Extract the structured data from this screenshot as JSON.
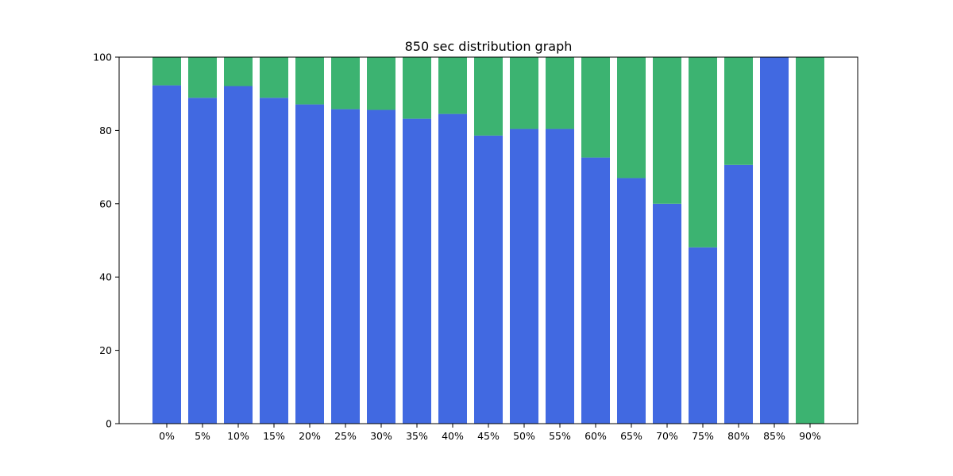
{
  "chart_data": {
    "type": "bar",
    "stacked": true,
    "title": "850 sec distribution graph",
    "xlabel": "",
    "ylabel": "",
    "ylim": [
      0,
      100
    ],
    "yticks": [
      0,
      20,
      40,
      60,
      80,
      100
    ],
    "grid": false,
    "categories": [
      "0%",
      "5%",
      "10%",
      "15%",
      "20%",
      "25%",
      "30%",
      "35%",
      "40%",
      "45%",
      "50%",
      "55%",
      "60%",
      "65%",
      "70%",
      "75%",
      "80%",
      "85%",
      "90%"
    ],
    "series": [
      {
        "color": "#4169e1",
        "values": [
          92.3,
          88.9,
          92.1,
          88.9,
          87.1,
          85.8,
          85.6,
          83.2,
          84.5,
          78.6,
          80.4,
          80.4,
          72.6,
          67.0,
          60.0,
          48.1,
          70.6,
          100.0,
          0.0
        ]
      },
      {
        "color": "#3cb371",
        "values": [
          7.7,
          11.1,
          7.9,
          11.1,
          12.9,
          14.2,
          14.4,
          16.8,
          15.5,
          21.4,
          19.6,
          19.6,
          27.4,
          33.0,
          40.0,
          51.9,
          29.4,
          0.0,
          100.0
        ]
      }
    ]
  }
}
